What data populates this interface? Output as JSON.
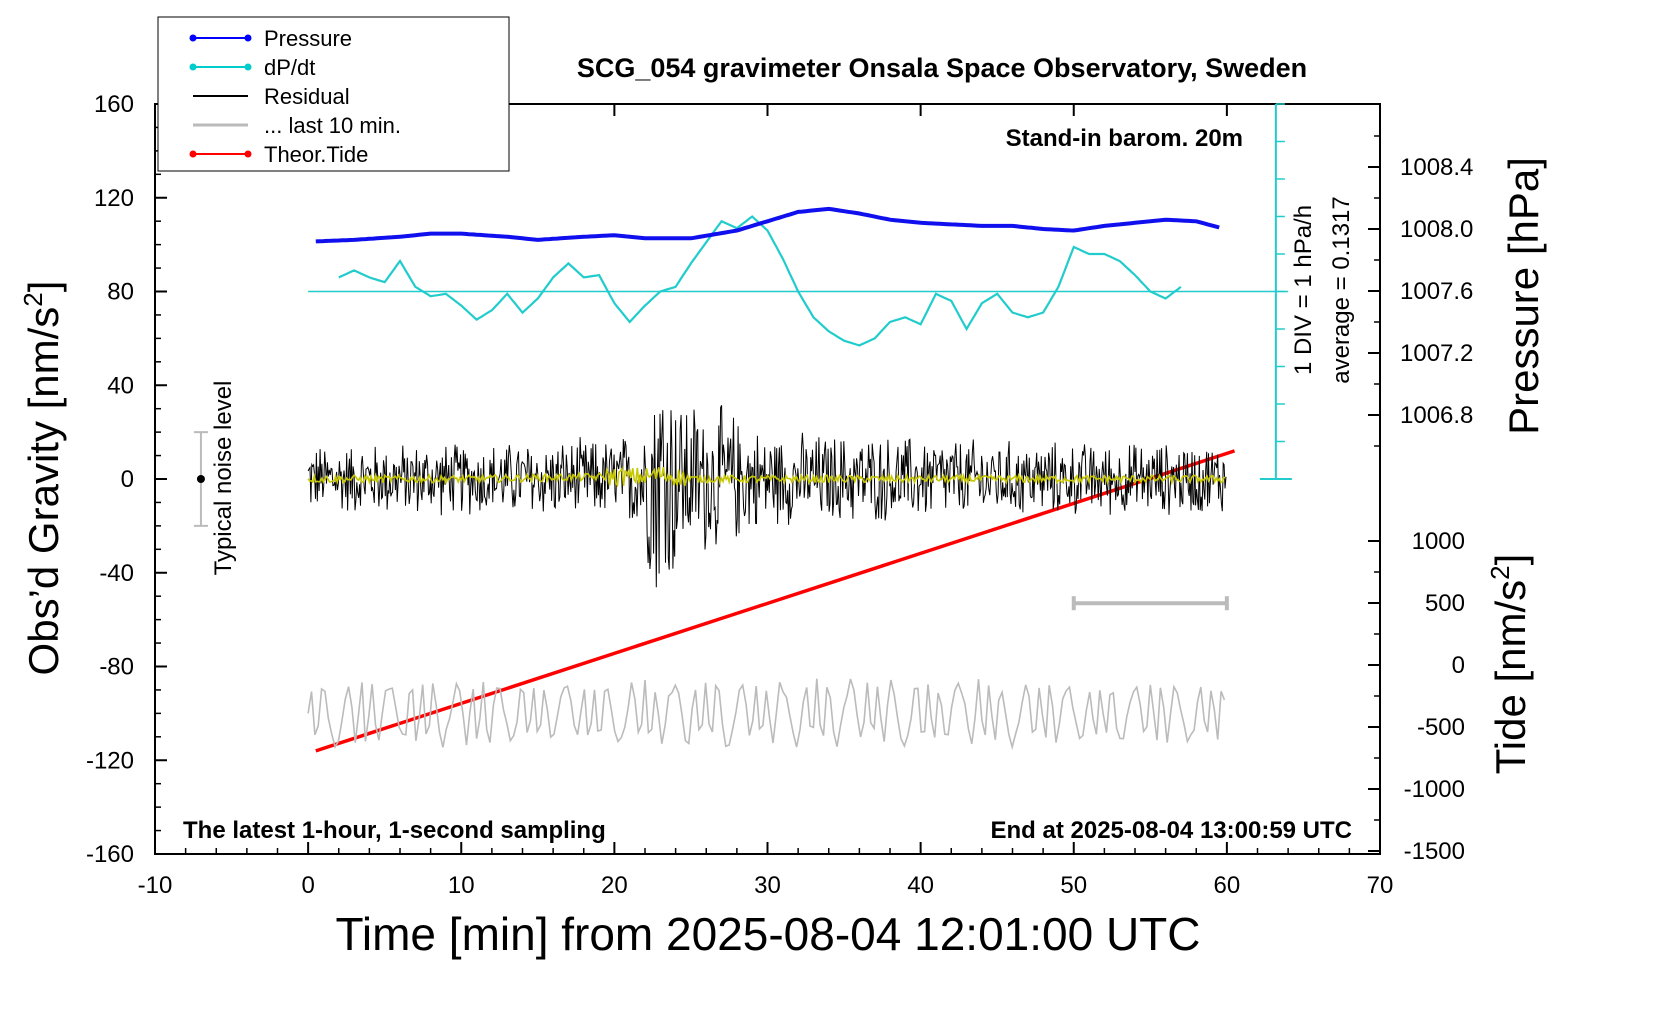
{
  "chart_data": {
    "type": "line",
    "title": "SCG_054 gravimeter Onsala Space Observatory, Sweden",
    "xlabel": "Time [min] from 2025-08-04 12:01:00 UTC",
    "ylabel": "Obs'd Gravity [nm/s²]",
    "ylabel_main": "Obs’d Gravity [nm/s",
    "ylabel_sup": "2",
    "ylabel_close": "]",
    "xlim": [
      -10,
      70
    ],
    "ylim": [
      -160,
      160
    ],
    "x_ticks": [
      "-10",
      "0",
      "10",
      "20",
      "30",
      "40",
      "50",
      "60",
      "70"
    ],
    "y_ticks": [
      "160",
      "120",
      "80",
      "40",
      "0",
      "-40",
      "-80",
      "-120",
      "-160"
    ],
    "pressure_axis": {
      "label": "Pressure [hPa]",
      "ticks": [
        "1008.4",
        "1008.0",
        "1007.6",
        "1007.2",
        "1006.8"
      ],
      "tick_values": [
        1008.4,
        1008.0,
        1007.6,
        1007.2,
        1006.8
      ]
    },
    "tide_axis": {
      "label_main": "Tide [nm/s",
      "label_sup": "2",
      "label_close": "]",
      "ticks": [
        "1000",
        "500",
        "0",
        "-500",
        "-1000",
        "-1500"
      ],
      "tick_values": [
        1000,
        500,
        0,
        -500,
        -1000,
        -1500
      ]
    },
    "legend": [
      {
        "label": "Pressure",
        "color": "#0000ff",
        "marker": true
      },
      {
        "label": "dP/dt",
        "color": "#00cccc",
        "marker": true
      },
      {
        "label": "Residual",
        "color": "#000000",
        "marker": false
      },
      {
        "label": "... last 10 min.",
        "color": "#bbbbbb",
        "marker": false
      },
      {
        "label": "Theor.Tide",
        "color": "#ff0000",
        "marker": true
      }
    ],
    "annotations": {
      "barometer": "Stand-in barom. 20m",
      "latest": "The latest 1-hour, 1-second sampling",
      "end_at": "End at 2025-08-04 13:00:59 UTC",
      "dpdt_scale": "1 DIV = 1 hPa/h",
      "dpdt_average": "average = 0.1317",
      "noise": "Typical noise level"
    },
    "noise_bar": {
      "x": -7,
      "center": 0,
      "low": -20,
      "high": 20
    },
    "ten_min_bar": {
      "x0": 50,
      "x1": 60,
      "y": -53
    },
    "series": [
      {
        "name": "Pressure",
        "unit": "hPa",
        "color": "#1010ee",
        "x": [
          0.5,
          3,
          6,
          8,
          10,
          13,
          15,
          18,
          20,
          22,
          25,
          28,
          30,
          32,
          34,
          36,
          38,
          40,
          42,
          44,
          46,
          48,
          50,
          52,
          54,
          56,
          58,
          59.5
        ],
        "values": [
          1007.92,
          1007.93,
          1007.95,
          1007.97,
          1007.97,
          1007.95,
          1007.93,
          1007.95,
          1007.96,
          1007.94,
          1007.94,
          1007.99,
          1008.05,
          1008.11,
          1008.13,
          1008.1,
          1008.06,
          1008.04,
          1008.03,
          1008.02,
          1008.02,
          1008.0,
          1007.99,
          1008.02,
          1008.04,
          1008.06,
          1008.05,
          1008.01
        ]
      },
      {
        "name": "dP/dt",
        "unit": "nm/s2 plot units",
        "color": "#22cccc",
        "x": [
          2,
          3,
          4,
          5,
          6,
          7,
          8,
          9,
          10,
          11,
          12,
          13,
          14,
          15,
          16,
          17,
          18,
          19,
          20,
          21,
          22,
          23,
          24,
          25,
          26,
          27,
          28,
          29,
          30,
          31,
          32,
          33,
          34,
          35,
          36,
          37,
          38,
          39,
          40,
          41,
          42,
          43,
          44,
          45,
          46,
          47,
          48,
          49,
          50,
          51,
          52,
          53,
          54,
          55,
          56,
          57
        ],
        "values": [
          86,
          89,
          86,
          84,
          93,
          82,
          78,
          79,
          74,
          68,
          72,
          79,
          71,
          77,
          86,
          92,
          86,
          87,
          75,
          67,
          74,
          80,
          82,
          92,
          101,
          110,
          107,
          112,
          106,
          94,
          80,
          69,
          63,
          59,
          57,
          60,
          67,
          69,
          66,
          79,
          76,
          64,
          75,
          79,
          71,
          69,
          71,
          82,
          99,
          96,
          96,
          93,
          87,
          80,
          77,
          82
        ]
      },
      {
        "name": "dP/dt zero line",
        "color": "#22cccc",
        "x": [
          0,
          64
        ],
        "values": [
          80,
          80
        ]
      },
      {
        "name": "Residual",
        "color": "#000000",
        "x": [
          0,
          5,
          10,
          15,
          20,
          21,
          22,
          22.5,
          23,
          23.5,
          24,
          24.5,
          25,
          26,
          27,
          28,
          29,
          30,
          35,
          40,
          45,
          50,
          55,
          60
        ],
        "values": [
          0,
          0,
          0,
          0,
          0,
          0,
          0,
          0,
          0,
          0,
          0,
          0,
          0,
          0,
          0,
          0,
          0,
          0,
          0,
          0,
          0,
          0,
          0,
          0
        ],
        "amplitude_envelope": [
          16,
          17,
          17,
          18,
          19,
          22,
          30,
          55,
          65,
          60,
          45,
          40,
          38,
          36,
          34,
          30,
          25,
          22,
          21,
          20,
          18,
          17,
          17,
          17
        ]
      },
      {
        "name": "Residual smoothed",
        "color": "#c8c800",
        "x": [
          0,
          10,
          20,
          22,
          23,
          24,
          25,
          30,
          40,
          50,
          60
        ],
        "values": [
          0,
          0,
          1,
          1,
          2,
          1,
          0,
          0,
          0,
          0,
          0
        ]
      },
      {
        "name": "... last 10 min.",
        "color": "#bbbbbb",
        "x": [
          0,
          60
        ],
        "values": [
          -100,
          -100
        ],
        "amplitude_envelope": [
          15,
          15
        ]
      },
      {
        "name": "Theor.Tide",
        "unit": "nm/s2",
        "color": "#ff0000",
        "x": [
          0.5,
          60.5
        ],
        "values": [
          -116,
          12
        ]
      }
    ]
  }
}
